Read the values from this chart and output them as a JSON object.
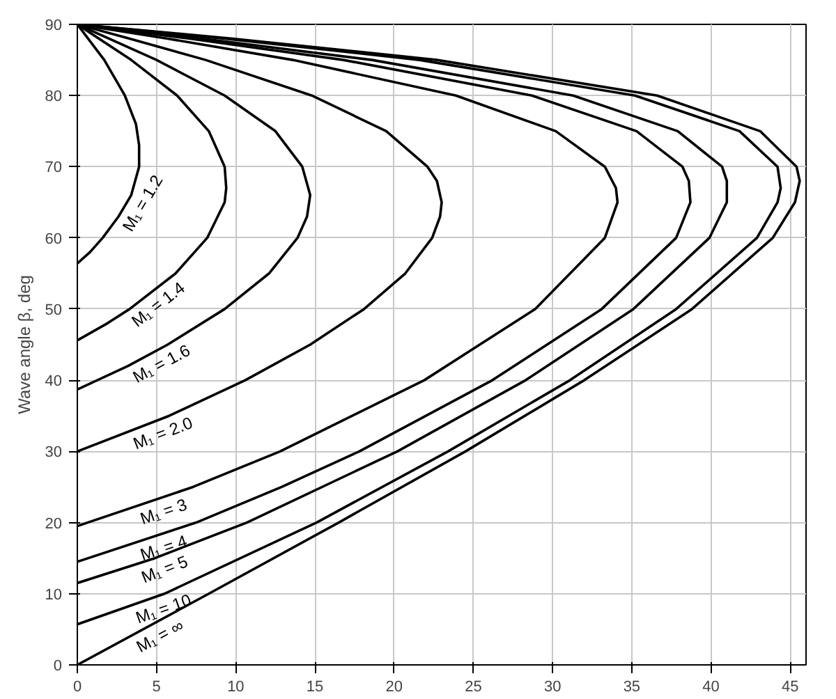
{
  "chart_data": {
    "type": "line",
    "ylabel": "Wave angle β, deg",
    "xlim": [
      0,
      46
    ],
    "ylim": [
      0,
      90
    ],
    "xticks": [
      0,
      5,
      10,
      15,
      20,
      25,
      30,
      35,
      40,
      45
    ],
    "yticks": [
      0,
      10,
      20,
      30,
      40,
      50,
      60,
      70,
      80,
      90
    ],
    "grid": true,
    "marker": "none",
    "line_style": "solid",
    "series": [
      {
        "name": "M₁ = 1.2",
        "color": "#000000",
        "x": [
          0,
          0.8,
          1.6,
          2.6,
          3.4,
          3.9,
          3.9,
          3.7,
          3.0,
          1.7,
          0
        ],
        "values": [
          56.4,
          58,
          60,
          63,
          66,
          70,
          73,
          76,
          80,
          85,
          90
        ]
      },
      {
        "name": "M₁ = 1.4",
        "color": "#000000",
        "x": [
          0,
          1.9,
          3.3,
          6.2,
          8.2,
          9.3,
          9.4,
          9.3,
          8.3,
          6.3,
          3.4,
          0
        ],
        "values": [
          45.6,
          48,
          50,
          55,
          60,
          65,
          67,
          70,
          75,
          80,
          85,
          90
        ]
      },
      {
        "name": "M₁ = 1.6",
        "color": "#000000",
        "x": [
          0,
          3.2,
          5.7,
          9.3,
          12.1,
          13.9,
          14.5,
          14.7,
          14.2,
          12.5,
          9.3,
          5.0,
          0
        ],
        "values": [
          38.7,
          42,
          45,
          50,
          55,
          60,
          63,
          66,
          70,
          75,
          80,
          85,
          90
        ]
      },
      {
        "name": "M₁ = 2.0",
        "color": "#000000",
        "x": [
          0,
          5.8,
          10.6,
          14.7,
          18.1,
          20.7,
          22.4,
          22.9,
          23.0,
          22.7,
          22.1,
          19.5,
          14.8,
          8.1,
          3.3,
          0
        ],
        "values": [
          30,
          35,
          40,
          45,
          50,
          55,
          60,
          63,
          65,
          68,
          70,
          75,
          80,
          85,
          88,
          90
        ]
      },
      {
        "name": "M₁ = 3",
        "color": "#000000",
        "x": [
          0,
          7.3,
          12.8,
          21.9,
          28.9,
          33.3,
          34.1,
          34.0,
          33.3,
          30.2,
          23.9,
          13.6,
          5.7,
          0
        ],
        "values": [
          19.5,
          25,
          30,
          40,
          50,
          60,
          65,
          67,
          70,
          75,
          80,
          85,
          88,
          90
        ]
      },
      {
        "name": "M₁ = 4",
        "color": "#000000",
        "x": [
          0,
          7.5,
          12.9,
          17.8,
          26.2,
          33.1,
          37.8,
          38.7,
          38.6,
          38.2,
          35.3,
          28.7,
          16.8,
          7.1,
          0
        ],
        "values": [
          14.5,
          20,
          25,
          30,
          40,
          50,
          60,
          65,
          68,
          70,
          75,
          80,
          85,
          88,
          90
        ]
      },
      {
        "name": "M₁ = 5",
        "color": "#000000",
        "x": [
          0,
          4.9,
          10.7,
          20.2,
          28.3,
          35.1,
          39.9,
          41.0,
          41.0,
          40.7,
          37.9,
          31.3,
          18.6,
          7.9,
          0
        ],
        "values": [
          11.5,
          15,
          20,
          30,
          40,
          50,
          60,
          65,
          68,
          70,
          75,
          80,
          85,
          88,
          90
        ]
      },
      {
        "name": "M₁ = 10",
        "color": "#000000",
        "x": [
          0,
          5.5,
          15.1,
          23.4,
          31.1,
          37.8,
          42.9,
          44.2,
          44.4,
          44.2,
          41.8,
          35.2,
          21.6,
          9.3,
          0
        ],
        "values": [
          5.7,
          10,
          20,
          30,
          40,
          50,
          60,
          65,
          67,
          70,
          75,
          80,
          85,
          88,
          90
        ]
      },
      {
        "name": "M₁ = ∞",
        "color": "#000000",
        "x": [
          0,
          8.3,
          16.5,
          24.5,
          32.0,
          38.8,
          43.9,
          45.3,
          45.6,
          45.4,
          43.1,
          36.6,
          22.7,
          9.8,
          0
        ],
        "values": [
          0,
          10,
          20,
          30,
          40,
          50,
          60,
          65,
          68,
          70,
          75,
          80,
          85,
          88,
          90
        ]
      }
    ]
  }
}
